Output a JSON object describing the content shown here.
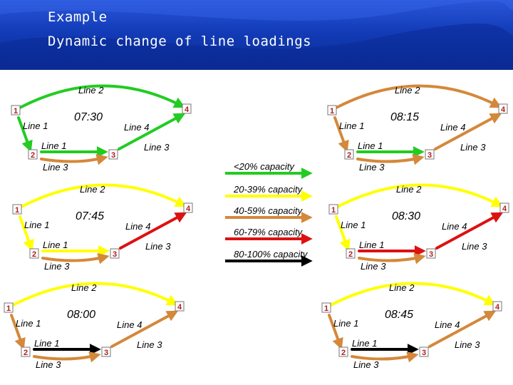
{
  "title": {
    "line1": "Example",
    "line2": "Dynamic change of line loadings"
  },
  "colors": {
    "green": "#22cc22",
    "yellow": "#ffff00",
    "orange": "#d4883a",
    "red": "#dd1111",
    "black": "#000000"
  },
  "legend": [
    {
      "label": "<20% capacity",
      "color": "green"
    },
    {
      "label": "20-39% capacity",
      "color": "yellow"
    },
    {
      "label": "40-59% capacity",
      "color": "orange"
    },
    {
      "label": "60-79% capacity",
      "color": "red"
    },
    {
      "label": "80-100% capacity",
      "color": "black"
    }
  ],
  "node_labels": [
    "1",
    "2",
    "3",
    "4"
  ],
  "line_labels": {
    "line1": "Line 1",
    "line2": "Line 2",
    "line3": "Line 3",
    "line4": "Line 4"
  },
  "panels": [
    {
      "time": "07:30",
      "colors": {
        "line1": "green",
        "line2": "green",
        "line3": "orange",
        "line4": "green",
        "l1h": "green"
      }
    },
    {
      "time": "08:15",
      "colors": {
        "line1": "orange",
        "line2": "orange",
        "line3": "orange",
        "line4": "orange",
        "l1h": "green"
      }
    },
    {
      "time": "07:45",
      "colors": {
        "line1": "yellow",
        "line2": "yellow",
        "line3": "orange",
        "line4": "red",
        "l1h": "yellow"
      }
    },
    {
      "time": "08:30",
      "colors": {
        "line1": "yellow",
        "line2": "yellow",
        "line3": "orange",
        "line4": "red",
        "l1h": "red"
      }
    },
    {
      "time": "08:00",
      "colors": {
        "line1": "orange",
        "line2": "yellow",
        "line3": "orange",
        "line4": "orange",
        "l1h": "black"
      }
    },
    {
      "time": "08:45",
      "colors": {
        "line1": "orange",
        "line2": "yellow",
        "line3": "orange",
        "line4": "orange",
        "l1h": "black"
      }
    }
  ]
}
